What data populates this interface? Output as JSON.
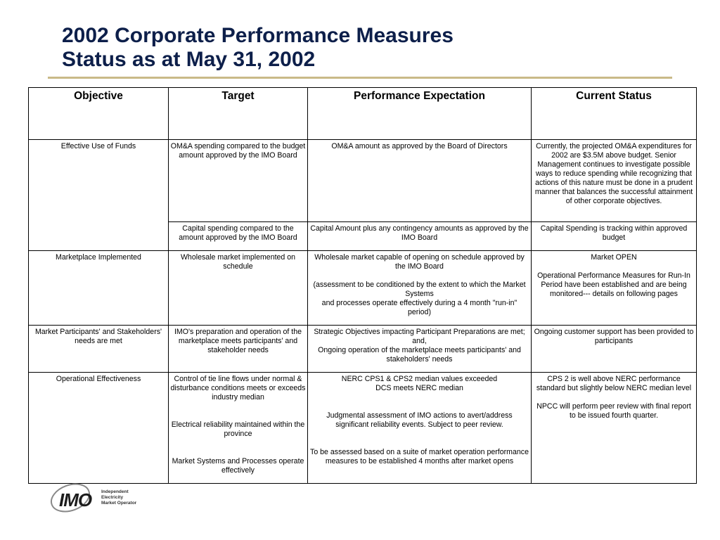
{
  "title": {
    "line1": "2002 Corporate Performance Measures",
    "line2": "Status as at May 31, 2002"
  },
  "table": {
    "headers": [
      "Objective",
      "Target",
      "Performance Expectation",
      "Current Status"
    ],
    "funds": {
      "objective": "Effective Use of Funds",
      "r1": {
        "target": "OM&A spending compared to the budget amount approved by the IMO Board",
        "expectation": "OM&A amount as approved by the Board of Directors",
        "status": "Currently, the projected OM&A expenditures for 2002 are $3.5M above budget.  Senior Management continues to investigate possible ways to reduce spending while recognizing that actions of this nature must be done in a prudent manner that balances the successful attainment of other corporate objectives."
      },
      "r2": {
        "target": "Capital spending compared to the amount approved by the IMO Board",
        "expectation": "Capital Amount plus any contingency amounts as approved by the IMO Board",
        "status": "Capital Spending is tracking within approved budget"
      }
    },
    "market": {
      "objective": "Marketplace Implemented",
      "target": "Wholesale market implemented on schedule",
      "expectation_1": "Wholesale market capable of opening on schedule approved by the IMO Board",
      "expectation_2": "(assessment to be conditioned by the extent to which the Market Systems",
      "expectation_3": "and processes operate effectively during a 4 month \"run-in\" period)",
      "status_1": "Market OPEN",
      "status_2": "Operational Performance Measures for Run-In Period have been established and are being monitored--- details on following pages"
    },
    "participants": {
      "objective": "Market Participants' and Stakeholders' needs are met",
      "target": "IMO's preparation and operation of the marketplace meets participants' and stakeholder needs",
      "expectation_1": "Strategic Objectives impacting Participant Preparations are met; and,",
      "expectation_2": "Ongoing operation of the marketplace meets participants' and stakeholders' needs",
      "status": "Ongoing customer support has been provided to participants"
    },
    "operational": {
      "objective": "Operational Effectiveness",
      "target_1": "Control of tie line flows under normal & disturbance conditions meets or exceeds  industry median",
      "target_2": "Electrical reliability maintained within the province",
      "target_3": "Market Systems and Processes operate effectively",
      "expectation_1a": "NERC CPS1 & CPS2 median values exceeded",
      "expectation_1b": "DCS meets NERC median",
      "expectation_2": "Judgmental assessment of IMO actions to avert/address significant reliability events. Subject to peer review.",
      "expectation_3a": "To be assessed  based on a suite of market operation performance",
      "expectation_3b": "measures to be established 4 months after market opens",
      "status_1": "CPS 2 is well above NERC performance standard but slightly below  NERC median level",
      "status_2": "NPCC will perform peer review with final report to be issued fourth quarter."
    }
  },
  "logo": {
    "wordmark": "IMO",
    "line1": "Independent",
    "line2": "Electricity",
    "line3": "Market Operator"
  },
  "colors": {
    "title": "#0d1f4a",
    "rule": "#c9ba88",
    "border": "#000000"
  }
}
